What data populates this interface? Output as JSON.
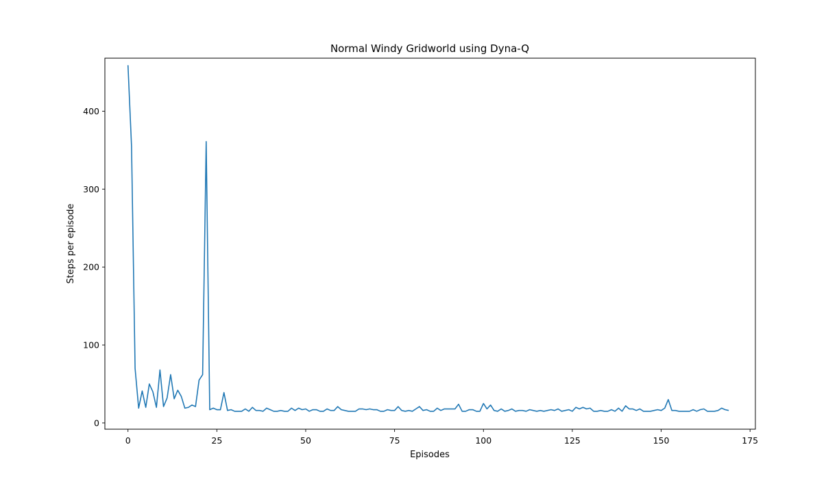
{
  "chart_data": {
    "type": "line",
    "title": "Normal Windy Gridworld using Dyna-Q",
    "xlabel": "Episodes",
    "ylabel": "Steps per episode",
    "xlim": [
      -6.5,
      176.5
    ],
    "ylim": [
      -8,
      468
    ],
    "xticks": [
      0,
      25,
      50,
      75,
      100,
      125,
      150,
      175
    ],
    "xtick_labels": [
      "0",
      "25",
      "50",
      "75",
      "100",
      "125",
      "150",
      "175"
    ],
    "yticks": [
      0,
      100,
      200,
      300,
      400
    ],
    "ytick_labels": [
      "0",
      "100",
      "200",
      "300",
      "400"
    ],
    "grid": false,
    "line_color": "#1f77b4",
    "series": [
      {
        "x_start": 0,
        "values": [
          459,
          355,
          70,
          19,
          41,
          20,
          50,
          40,
          20,
          68,
          21,
          32,
          62,
          31,
          42,
          34,
          19,
          20,
          23,
          21,
          55,
          62,
          361,
          17,
          19,
          17,
          17,
          39,
          16,
          17,
          15,
          15,
          15,
          18,
          15,
          20,
          16,
          16,
          15,
          19,
          17,
          15,
          15,
          16,
          15,
          15,
          19,
          16,
          19,
          17,
          18,
          15,
          17,
          17,
          15,
          15,
          18,
          16,
          16,
          21,
          17,
          16,
          15,
          15,
          15,
          18,
          18,
          17,
          18,
          17,
          17,
          15,
          15,
          17,
          16,
          16,
          21,
          16,
          15,
          16,
          15,
          18,
          21,
          16,
          17,
          15,
          15,
          19,
          16,
          18,
          18,
          18,
          18,
          24,
          15,
          15,
          17,
          17,
          15,
          15,
          25,
          18,
          23,
          16,
          15,
          18,
          15,
          16,
          18,
          15,
          16,
          16,
          15,
          17,
          16,
          15,
          16,
          15,
          16,
          17,
          16,
          18,
          15,
          16,
          17,
          15,
          20,
          18,
          20,
          18,
          19,
          15,
          15,
          16,
          15,
          15,
          17,
          15,
          19,
          15,
          22,
          18,
          18,
          16,
          18,
          15,
          15,
          15,
          16,
          17,
          16,
          19,
          30,
          16,
          16,
          15,
          15,
          15,
          15,
          17,
          15,
          17,
          18,
          15,
          15,
          15,
          16,
          19,
          17,
          16
        ]
      }
    ]
  }
}
